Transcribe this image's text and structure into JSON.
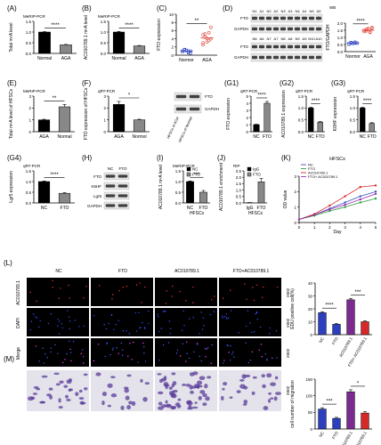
{
  "panels": {
    "A": {
      "label": "(A)",
      "method": "MeRIP-PCR"
    },
    "B": {
      "label": "(B)",
      "method": "MeRIP-PCR"
    },
    "C": {
      "label": "(C)"
    },
    "D": {
      "label": "(D)",
      "method": "WB"
    },
    "E": {
      "label": "(E)",
      "method": "MeRIP-PCR"
    },
    "F": {
      "label": "(F)",
      "method": "qRT-PCR"
    },
    "G1": {
      "label": "(G1)",
      "method": "qRT-PCR"
    },
    "G2": {
      "label": "(G2)",
      "method": "qRT-PCR"
    },
    "G3": {
      "label": "(G3)",
      "method": "qRT-PCR"
    },
    "G4": {
      "label": "(G4)",
      "method": "qRT-PCR"
    },
    "H": {
      "label": "(H)"
    },
    "I": {
      "label": "(I)",
      "method": "MeRIP-PCR"
    },
    "J": {
      "label": "(J)",
      "method": "RIP"
    },
    "K": {
      "label": "(K)",
      "title": "HFSCs"
    },
    "L": {
      "label": "(L)"
    },
    "M": {
      "label": "(M)"
    }
  },
  "blots": {
    "D": {
      "row1_lanes": [
        "N1",
        "A1",
        "N2",
        "A2",
        "N3",
        "A3",
        "N4",
        "A4",
        "N5",
        "A5"
      ],
      "row2_lanes": [
        "N6",
        "A6",
        "N7",
        "A7",
        "N8",
        "A8",
        "N9",
        "A9",
        "N10",
        "A10"
      ],
      "bands": [
        "FTO",
        "GAPDH",
        "FTO",
        "GAPDH"
      ]
    },
    "F": {
      "bands": [
        "FTO",
        "GAPDH"
      ],
      "lanes": [
        "HFSCs of AGA",
        "HFSCs of Normal"
      ]
    },
    "H": {
      "lanes": [
        "NC",
        "FTO"
      ],
      "bands": [
        "FTO",
        "K6HF",
        "Lgr5",
        "GAPDH"
      ]
    }
  },
  "images": {
    "columns": [
      "NC",
      "FTO",
      "AC010789.1",
      "FTO+AC010789.1"
    ],
    "L_rows": [
      "AC010789.1",
      "DAPI",
      "Merge"
    ],
    "magnification": "200X"
  },
  "chart_data": [
    {
      "id": "A",
      "type": "bar",
      "categories": [
        "Normal",
        "AGA"
      ],
      "values": [
        1.0,
        0.4
      ],
      "errors": [
        0.02,
        0.02
      ],
      "ylabel": "Total m⁶A level",
      "ylim": [
        0,
        1.5
      ],
      "yticks": [
        0.0,
        0.5,
        1.0,
        1.5
      ],
      "sig": "****",
      "colors": [
        "#000000",
        "#888888"
      ]
    },
    {
      "id": "B",
      "type": "bar",
      "categories": [
        "Normal",
        "AGA"
      ],
      "values": [
        1.0,
        0.35
      ],
      "errors": [
        0.03,
        0.02
      ],
      "ylabel": "AC010789.1 m⁶A level",
      "ylim": [
        0,
        1.5
      ],
      "yticks": [
        0.0,
        0.5,
        1.0,
        1.5
      ],
      "sig": "****",
      "colors": [
        "#000000",
        "#888888"
      ]
    },
    {
      "id": "C",
      "type": "scatter",
      "categories": [
        "Normor",
        "AGA"
      ],
      "points": [
        [
          1.0,
          1.3,
          1.1,
          0.6,
          0.5,
          0.9,
          1.4,
          1.2,
          0.8,
          1.0
        ],
        [
          3.0,
          5.2,
          4.1,
          3.6,
          6.8,
          2.5,
          4.4,
          3.2,
          5.5,
          4.0,
          5.0
        ]
      ],
      "means": [
        1.0,
        4.2
      ],
      "ylabel": "FTO expression",
      "ylim": [
        0,
        10
      ],
      "yticks": [
        0,
        2,
        4,
        6,
        8,
        10
      ],
      "sig": "**",
      "colors": [
        "#3a4fc4",
        "#e0453a"
      ]
    },
    {
      "id": "D",
      "type": "scatter",
      "categories": [
        "Normor",
        "AGA"
      ],
      "points": [
        [
          0.55,
          0.62,
          0.58,
          0.66,
          0.6,
          0.52,
          0.64,
          0.57,
          0.61,
          0.59
        ],
        [
          1.4,
          1.55,
          1.62,
          1.38,
          1.7,
          1.5,
          1.45,
          1.58,
          1.35,
          1.65
        ]
      ],
      "means": [
        0.6,
        1.5
      ],
      "ylabel": "FTO/GAPDH",
      "ylim": [
        0,
        2.0
      ],
      "yticks": [
        0.0,
        0.5,
        1.0,
        1.5,
        2.0
      ],
      "sig": "****",
      "colors": [
        "#3a4fc4",
        "#e0453a"
      ]
    },
    {
      "id": "E",
      "type": "bar",
      "categories": [
        "AGA",
        "Normal"
      ],
      "values": [
        1.0,
        2.1
      ],
      "errors": [
        0.05,
        0.2
      ],
      "ylabel": "Total m⁶A level of HFSCs",
      "ylim": [
        0,
        3
      ],
      "yticks": [
        0,
        1,
        2,
        3
      ],
      "sig": "**",
      "colors": [
        "#000000",
        "#888888"
      ]
    },
    {
      "id": "F",
      "type": "bar",
      "categories": [
        "AGA",
        "Normol"
      ],
      "values": [
        2.3,
        1.0
      ],
      "errors": [
        0.25,
        0.05
      ],
      "ylabel": "FTO expression of HFSCs",
      "ylim": [
        0,
        3
      ],
      "yticks": [
        0,
        1,
        2,
        3
      ],
      "sig": "*",
      "colors": [
        "#000000",
        "#888888"
      ]
    },
    {
      "id": "G1",
      "type": "bar",
      "categories": [
        "NC",
        "FTO"
      ],
      "values": [
        1.0,
        4.0
      ],
      "errors": [
        0.05,
        0.25
      ],
      "ylabel": "FTO expression",
      "ylim": [
        0,
        5
      ],
      "yticks": [
        0,
        1,
        2,
        3,
        4,
        5
      ],
      "sig": "****",
      "colors": [
        "#000000",
        "#888888"
      ]
    },
    {
      "id": "G2",
      "type": "bar",
      "categories": [
        "NC",
        "FTO"
      ],
      "values": [
        1.0,
        0.4
      ],
      "errors": [
        0.03,
        0.03
      ],
      "ylabel": "AC010789.1 expression",
      "ylim": [
        0,
        1.5
      ],
      "yticks": [
        0.0,
        0.5,
        1.0,
        1.5
      ],
      "sig": "****",
      "colors": [
        "#000000",
        "#888888"
      ]
    },
    {
      "id": "G3",
      "type": "bar",
      "categories": [
        "NC",
        "FTO"
      ],
      "values": [
        1.0,
        0.35
      ],
      "errors": [
        0.03,
        0.03
      ],
      "ylabel": "K6HF expression",
      "ylim": [
        0,
        1.5
      ],
      "yticks": [
        0.0,
        0.5,
        1.0,
        1.5
      ],
      "sig": "****",
      "colors": [
        "#000000",
        "#888888"
      ]
    },
    {
      "id": "G4",
      "type": "bar",
      "categories": [
        "NC",
        "FTO"
      ],
      "values": [
        1.0,
        0.45
      ],
      "errors": [
        0.03,
        0.03
      ],
      "ylabel": "Lgr5 expression",
      "ylim": [
        0,
        1.5
      ],
      "yticks": [
        0.0,
        0.5,
        1.0,
        1.5
      ],
      "sig": "****",
      "colors": [
        "#000000",
        "#888888"
      ]
    },
    {
      "id": "I",
      "type": "bar",
      "categories": [
        "NC",
        "FTO"
      ],
      "values": [
        1.0,
        0.5
      ],
      "errors": [
        0.03,
        0.08
      ],
      "ylabel": "AC010789.1 m⁶A level",
      "xlabel": "HFSCs",
      "ylim": [
        0,
        1.5
      ],
      "yticks": [
        0.0,
        0.5,
        1.0,
        1.5
      ],
      "sig": "***",
      "legend": [
        "NC",
        "FTO"
      ],
      "colors": [
        "#000000",
        "#888888"
      ]
    },
    {
      "id": "J",
      "type": "bar",
      "categories": [
        "IgG",
        "FTO"
      ],
      "values": [
        0.02,
        1.65
      ],
      "errors": [
        0.01,
        0.25
      ],
      "ylabel": "AC010789.1 enrichment",
      "xlabel": "HFSCs",
      "ylim": [
        0,
        2.5
      ],
      "yticks": [
        0.0,
        0.5,
        1.0,
        1.5,
        2.0,
        2.5
      ],
      "legend": [
        "IgG",
        "FTO"
      ],
      "colors": [
        "#000000",
        "#888888"
      ]
    },
    {
      "id": "K",
      "type": "line",
      "x": [
        0,
        1,
        2,
        3,
        4,
        5
      ],
      "xlabel": "Day",
      "ylabel": "OD value",
      "ylim": [
        0,
        3
      ],
      "yticks": [
        0,
        1,
        2,
        3
      ],
      "title": "HFSCs",
      "series": [
        {
          "name": "NC",
          "values": [
            0.2,
            0.5,
            0.9,
            1.3,
            1.7,
            2.0
          ],
          "color": "#3a4fc4"
        },
        {
          "name": "FTO",
          "values": [
            0.2,
            0.45,
            0.75,
            1.0,
            1.3,
            1.55
          ],
          "color": "#2e9a3a"
        },
        {
          "name": "AC010789.1",
          "values": [
            0.2,
            0.55,
            1.1,
            1.7,
            2.3,
            2.4
          ],
          "color": "#d62828"
        },
        {
          "name": "FTO+ AC010789.1",
          "values": [
            0.2,
            0.5,
            0.85,
            1.15,
            1.5,
            1.85
          ],
          "color": "#9b2fb0"
        }
      ]
    },
    {
      "id": "L",
      "type": "bar",
      "categories": [
        "NC",
        "FTO",
        "AC010789.1",
        "FTO+ AC010789.1"
      ],
      "values": [
        17,
        8,
        27,
        10
      ],
      "errors": [
        0.8,
        0.6,
        1.0,
        0.7
      ],
      "ylabel": "EDU positive cell(%)",
      "ylim": [
        0,
        40
      ],
      "yticks": [
        0,
        10,
        20,
        30,
        40
      ],
      "sig": [
        "****",
        "***"
      ],
      "colors": [
        "#2b3fbf",
        "#2b3fbf",
        "#7b2a8f",
        "#d62828"
      ]
    },
    {
      "id": "M",
      "type": "bar",
      "categories": [
        "NC",
        "FTO",
        "AC010789.1",
        "FTO+ AC010789.1"
      ],
      "values": [
        60,
        32,
        112,
        48
      ],
      "errors": [
        4,
        3,
        6,
        4
      ],
      "ylabel": "cell number of migration",
      "ylim": [
        0,
        150
      ],
      "yticks": [
        0,
        50,
        100,
        150
      ],
      "sig": [
        "***",
        "*"
      ],
      "colors": [
        "#2b3fbf",
        "#2b3fbf",
        "#7b2a8f",
        "#d62828"
      ]
    }
  ]
}
